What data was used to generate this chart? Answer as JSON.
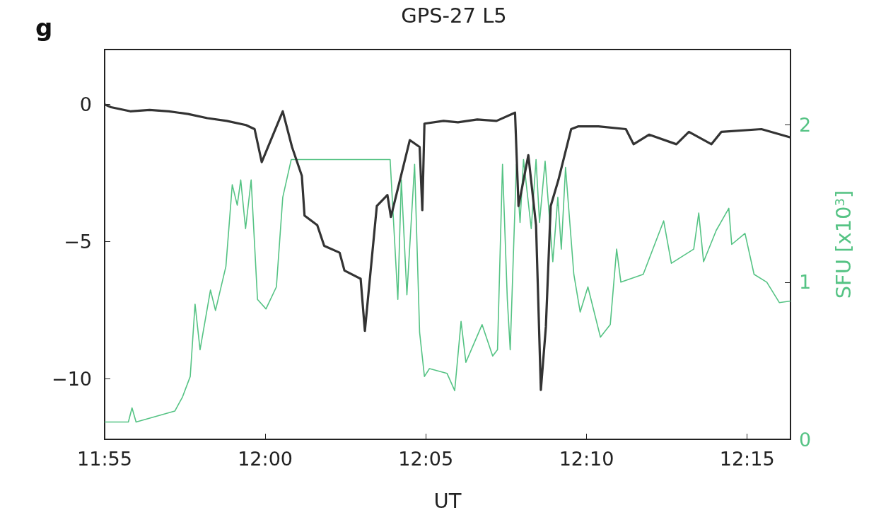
{
  "chart_data": {
    "type": "line",
    "title": "GPS-27 L5",
    "xlabel": "UT",
    "y2label": "SFU [x10$^{3}$]",
    "annotations": [
      "g"
    ],
    "marker": "none",
    "grid": false,
    "xlim": [
      11.9167,
      12.2725
    ],
    "xticks": [
      {
        "value": 11.9167,
        "label": "11:55"
      },
      {
        "value": 12,
        "label": "12:00"
      },
      {
        "value": 12.0833,
        "label": "12:05"
      },
      {
        "value": 12.1667,
        "label": "12:10"
      },
      {
        "value": 12.25,
        "label": "12:15"
      }
    ],
    "ylim": [
      -12.2,
      2
    ],
    "yticks": [
      {
        "value": 0,
        "label": "0"
      },
      {
        "value": -5,
        "label": "−5"
      },
      {
        "value": -10,
        "label": "−10"
      }
    ],
    "y2lim": [
      0,
      2.48
    ],
    "y2ticks": [
      0,
      1,
      2
    ],
    "series": [
      {
        "color": "#55c384",
        "axis": "y2",
        "x": [
          11.9167,
          11.929,
          11.9309,
          11.933,
          11.9531,
          11.9571,
          11.9611,
          11.9636,
          11.9662,
          11.9716,
          11.9742,
          11.9796,
          11.9829,
          11.9855,
          11.9873,
          11.9898,
          11.9927,
          11.996,
          12.0004,
          12.0058,
          12.0091,
          12.0135,
          12.0648,
          12.0688,
          12.0706,
          12.0735,
          12.0775,
          12.0801,
          12.0826,
          12.0852,
          12.0943,
          12.0983,
          12.1016,
          12.1041,
          12.1125,
          12.118,
          12.1205,
          12.1231,
          12.1256,
          12.1271,
          12.1303,
          12.1322,
          12.134,
          12.138,
          12.1405,
          12.1423,
          12.1452,
          12.1492,
          12.1518,
          12.1536,
          12.1558,
          12.1601,
          12.1634,
          12.1674,
          12.1739,
          12.179,
          12.1823,
          12.1845,
          12.1961,
          12.2067,
          12.2107,
          12.2223,
          12.2249,
          12.2274,
          12.234,
          12.2405,
          12.242,
          12.2489,
          12.2536,
          12.2602,
          12.2667,
          12.2725
        ],
        "values": [
          0.11,
          0.11,
          0.2,
          0.11,
          0.18,
          0.27,
          0.4,
          0.86,
          0.57,
          0.95,
          0.82,
          1.1,
          1.62,
          1.49,
          1.65,
          1.34,
          1.65,
          0.89,
          0.83,
          0.97,
          1.54,
          1.78,
          1.78,
          0.89,
          1.65,
          0.92,
          1.75,
          0.68,
          0.4,
          0.45,
          0.42,
          0.31,
          0.75,
          0.49,
          0.73,
          0.53,
          0.57,
          1.75,
          0.89,
          0.57,
          1.75,
          1.38,
          1.78,
          1.34,
          1.78,
          1.38,
          1.77,
          1.13,
          1.54,
          1.21,
          1.73,
          1.05,
          0.81,
          0.97,
          0.65,
          0.73,
          1.21,
          1.0,
          1.05,
          1.39,
          1.12,
          1.21,
          1.44,
          1.13,
          1.33,
          1.47,
          1.24,
          1.31,
          1.05,
          1.0,
          0.87,
          0.88
        ]
      },
      {
        "color": "#333333",
        "x": [
          11.9167,
          11.92,
          11.93,
          11.94,
          11.95,
          11.96,
          11.97,
          11.98,
          11.99,
          11.9945,
          11.9982,
          12.0091,
          12.0139,
          12.019,
          12.0204,
          12.027,
          12.0306,
          12.0386,
          12.0411,
          12.0495,
          12.0517,
          12.0579,
          12.0634,
          12.0652,
          12.075,
          12.0801,
          12.0815,
          12.0826,
          12.0925,
          12.1,
          12.11,
          12.12,
          12.1296,
          12.1314,
          12.1365,
          12.1405,
          12.143,
          12.1456,
          12.1481,
          12.1521,
          12.1587,
          12.1623,
          12.1729,
          12.1871,
          12.1911,
          12.1991,
          12.2133,
          12.2198,
          12.2315,
          12.2366,
          12.2574,
          12.2725
        ],
        "values": [
          0,
          -0.1,
          -0.25,
          -0.2,
          -0.25,
          -0.35,
          -0.5,
          -0.6,
          -0.75,
          -0.9,
          -2.1,
          -0.25,
          -1.55,
          -2.6,
          -4.05,
          -4.4,
          -5.15,
          -5.4,
          -6.05,
          -6.35,
          -8.25,
          -3.7,
          -3.3,
          -4.1,
          -1.3,
          -1.55,
          -3.85,
          -0.7,
          -0.6,
          -0.65,
          -0.55,
          -0.6,
          -0.3,
          -3.7,
          -1.85,
          -4.4,
          -10.4,
          -8.1,
          -3.7,
          -2.75,
          -0.9,
          -0.8,
          -0.8,
          -0.9,
          -1.45,
          -1.1,
          -1.45,
          -1.0,
          -1.45,
          -1.0,
          -0.9,
          -1.2
        ]
      }
    ]
  }
}
